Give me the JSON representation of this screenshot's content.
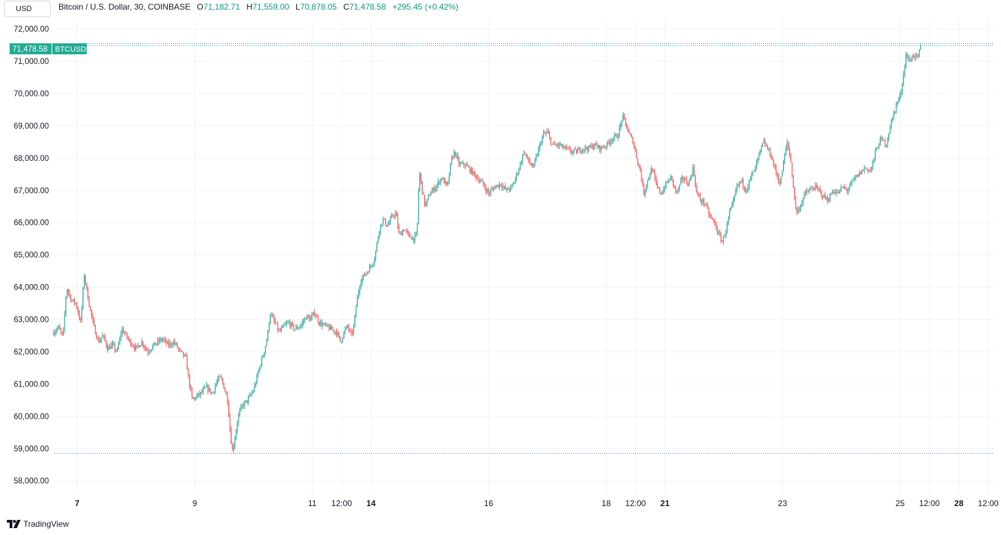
{
  "header": {
    "currency": "USD",
    "symbol_desc": "Bitcoin / U.S. Dollar, 30, COINBASE",
    "o_label": "O",
    "o_value": "71,182.71",
    "h_label": "H",
    "h_value": "71,559.00",
    "l_label": "L",
    "l_value": "70,878.05",
    "c_label": "C",
    "c_value": "71,478.58",
    "change": "+295.45 (+0.42%)"
  },
  "price_tag": {
    "value": "71,478.58",
    "symbol": "BTCUSD"
  },
  "branding": {
    "logo_text": "TradingView",
    "logo_icon": "tradingview-logo-icon"
  },
  "colors": {
    "up": "#26a69a",
    "down": "#ef5350",
    "grid": "#f0f3fa",
    "dotted": "#4f6ea0",
    "tag": "#22ab94",
    "accent_text": "#089981"
  },
  "chart_data": {
    "type": "candlestick",
    "symbol": "BTCUSD",
    "interval": "30",
    "exchange": "COINBASE",
    "ylim": [
      57600,
      72300
    ],
    "y_ticks": [
      58000,
      59000,
      60000,
      61000,
      62000,
      63000,
      64000,
      65000,
      66000,
      67000,
      68000,
      69000,
      70000,
      71000,
      72000
    ],
    "y_tick_labels": [
      "58,000.00",
      "59,000.00",
      "60,000.00",
      "61,000.00",
      "62,000.00",
      "63,000.00",
      "64,000.00",
      "65,000.00",
      "66,000.00",
      "67,000.00",
      "68,000.00",
      "69,000.00",
      "70,000.00",
      "71,000.00",
      "72,000.00"
    ],
    "x_ticks": [
      {
        "label": "7",
        "t": 0.4,
        "bold": true
      },
      {
        "label": "9",
        "t": 2.4,
        "bold": false
      },
      {
        "label": "11",
        "t": 4.4,
        "bold": false
      },
      {
        "label": "12:00",
        "t": 4.9,
        "bold": false
      },
      {
        "label": "14",
        "t": 5.4,
        "bold": true
      },
      {
        "label": "16",
        "t": 7.4,
        "bold": false
      },
      {
        "label": "18",
        "t": 9.4,
        "bold": false
      },
      {
        "label": "12:00",
        "t": 9.9,
        "bold": false
      },
      {
        "label": "21",
        "t": 10.4,
        "bold": true
      },
      {
        "label": "23",
        "t": 12.4,
        "bold": false
      },
      {
        "label": "25",
        "t": 14.4,
        "bold": false
      },
      {
        "label": "12:00",
        "t": 14.9,
        "bold": false
      },
      {
        "label": "28",
        "t": 15.4,
        "bold": true
      },
      {
        "label": "12:00",
        "t": 15.9,
        "bold": false
      }
    ],
    "t_range": [
      0,
      16
    ],
    "last_price": 71478.58,
    "range_low": 58850,
    "path": [
      [
        0.0,
        62600
      ],
      [
        0.08,
        62750
      ],
      [
        0.16,
        62450
      ],
      [
        0.22,
        64000
      ],
      [
        0.3,
        63600
      ],
      [
        0.38,
        63500
      ],
      [
        0.46,
        62900
      ],
      [
        0.52,
        64400
      ],
      [
        0.6,
        63500
      ],
      [
        0.68,
        62800
      ],
      [
        0.76,
        62300
      ],
      [
        0.84,
        62500
      ],
      [
        0.92,
        62100
      ],
      [
        1.0,
        62200
      ],
      [
        1.08,
        62000
      ],
      [
        1.16,
        62700
      ],
      [
        1.2,
        62600
      ],
      [
        1.3,
        62300
      ],
      [
        1.4,
        62100
      ],
      [
        1.5,
        62300
      ],
      [
        1.6,
        62000
      ],
      [
        1.7,
        62200
      ],
      [
        1.85,
        62400
      ],
      [
        1.95,
        62200
      ],
      [
        2.05,
        62300
      ],
      [
        2.15,
        62000
      ],
      [
        2.25,
        61800
      ],
      [
        2.3,
        61100
      ],
      [
        2.36,
        60500
      ],
      [
        2.42,
        60600
      ],
      [
        2.5,
        60700
      ],
      [
        2.6,
        60900
      ],
      [
        2.7,
        60700
      ],
      [
        2.78,
        61100
      ],
      [
        2.84,
        61200
      ],
      [
        2.9,
        60900
      ],
      [
        2.96,
        60500
      ],
      [
        3.0,
        59600
      ],
      [
        3.04,
        58900
      ],
      [
        3.08,
        59300
      ],
      [
        3.14,
        60000
      ],
      [
        3.2,
        60300
      ],
      [
        3.3,
        60500
      ],
      [
        3.4,
        60800
      ],
      [
        3.5,
        61500
      ],
      [
        3.58,
        62000
      ],
      [
        3.64,
        62500
      ],
      [
        3.68,
        63200
      ],
      [
        3.76,
        62900
      ],
      [
        3.84,
        62600
      ],
      [
        3.92,
        62800
      ],
      [
        4.0,
        62900
      ],
      [
        4.1,
        62700
      ],
      [
        4.2,
        62800
      ],
      [
        4.3,
        63100
      ],
      [
        4.36,
        63000
      ],
      [
        4.44,
        63200
      ],
      [
        4.52,
        62900
      ],
      [
        4.62,
        62800
      ],
      [
        4.72,
        62700
      ],
      [
        4.82,
        62600
      ],
      [
        4.88,
        62300
      ],
      [
        4.94,
        62600
      ],
      [
        5.0,
        62800
      ],
      [
        5.06,
        62500
      ],
      [
        5.1,
        62700
      ],
      [
        5.16,
        63600
      ],
      [
        5.22,
        64200
      ],
      [
        5.3,
        64400
      ],
      [
        5.38,
        64600
      ],
      [
        5.46,
        64900
      ],
      [
        5.54,
        65800
      ],
      [
        5.6,
        66100
      ],
      [
        5.68,
        65900
      ],
      [
        5.76,
        66200
      ],
      [
        5.82,
        66300
      ],
      [
        5.88,
        65600
      ],
      [
        5.96,
        65800
      ],
      [
        6.04,
        65600
      ],
      [
        6.12,
        65500
      ],
      [
        6.18,
        65600
      ],
      [
        6.22,
        67600
      ],
      [
        6.28,
        66900
      ],
      [
        6.32,
        66500
      ],
      [
        6.4,
        66900
      ],
      [
        6.5,
        67100
      ],
      [
        6.6,
        67400
      ],
      [
        6.7,
        67100
      ],
      [
        6.76,
        67900
      ],
      [
        6.82,
        68200
      ],
      [
        6.9,
        67800
      ],
      [
        7.0,
        67800
      ],
      [
        7.1,
        67600
      ],
      [
        7.2,
        67400
      ],
      [
        7.3,
        67200
      ],
      [
        7.4,
        66900
      ],
      [
        7.5,
        67100
      ],
      [
        7.6,
        67200
      ],
      [
        7.7,
        67000
      ],
      [
        7.8,
        67100
      ],
      [
        7.86,
        67400
      ],
      [
        7.92,
        67700
      ],
      [
        8.0,
        68200
      ],
      [
        8.08,
        67900
      ],
      [
        8.16,
        67700
      ],
      [
        8.24,
        68200
      ],
      [
        8.32,
        68700
      ],
      [
        8.4,
        68800
      ],
      [
        8.48,
        68400
      ],
      [
        8.6,
        68400
      ],
      [
        8.7,
        68300
      ],
      [
        8.8,
        68200
      ],
      [
        8.9,
        68200
      ],
      [
        9.0,
        68300
      ],
      [
        9.1,
        68300
      ],
      [
        9.2,
        68400
      ],
      [
        9.3,
        68300
      ],
      [
        9.4,
        68400
      ],
      [
        9.5,
        68600
      ],
      [
        9.6,
        68700
      ],
      [
        9.68,
        69300
      ],
      [
        9.74,
        69000
      ],
      [
        9.8,
        68700
      ],
      [
        9.86,
        68500
      ],
      [
        9.92,
        68000
      ],
      [
        9.98,
        67600
      ],
      [
        10.04,
        66900
      ],
      [
        10.1,
        67300
      ],
      [
        10.18,
        67700
      ],
      [
        10.26,
        67100
      ],
      [
        10.34,
        66900
      ],
      [
        10.42,
        67200
      ],
      [
        10.5,
        67400
      ],
      [
        10.6,
        66900
      ],
      [
        10.7,
        67400
      ],
      [
        10.8,
        67200
      ],
      [
        10.88,
        67700
      ],
      [
        10.94,
        66900
      ],
      [
        11.0,
        66700
      ],
      [
        11.08,
        66600
      ],
      [
        11.16,
        66200
      ],
      [
        11.24,
        66000
      ],
      [
        11.32,
        65600
      ],
      [
        11.38,
        65400
      ],
      [
        11.44,
        65800
      ],
      [
        11.5,
        66300
      ],
      [
        11.56,
        66600
      ],
      [
        11.62,
        67100
      ],
      [
        11.7,
        67300
      ],
      [
        11.78,
        67000
      ],
      [
        11.86,
        67400
      ],
      [
        11.94,
        67700
      ],
      [
        12.0,
        68100
      ],
      [
        12.08,
        68500
      ],
      [
        12.14,
        68300
      ],
      [
        12.2,
        68100
      ],
      [
        12.28,
        67600
      ],
      [
        12.36,
        67200
      ],
      [
        12.42,
        67900
      ],
      [
        12.48,
        68500
      ],
      [
        12.54,
        67900
      ],
      [
        12.6,
        66800
      ],
      [
        12.64,
        66300
      ],
      [
        12.7,
        66500
      ],
      [
        12.78,
        66900
      ],
      [
        12.86,
        67000
      ],
      [
        12.94,
        67100
      ],
      [
        13.02,
        67000
      ],
      [
        13.1,
        66800
      ],
      [
        13.18,
        66700
      ],
      [
        13.26,
        67000
      ],
      [
        13.34,
        66900
      ],
      [
        13.42,
        67100
      ],
      [
        13.5,
        67000
      ],
      [
        13.6,
        67300
      ],
      [
        13.7,
        67500
      ],
      [
        13.8,
        67700
      ],
      [
        13.9,
        67600
      ],
      [
        14.0,
        68300
      ],
      [
        14.08,
        68600
      ],
      [
        14.16,
        68400
      ],
      [
        14.22,
        68900
      ],
      [
        14.28,
        69300
      ],
      [
        14.34,
        69700
      ],
      [
        14.4,
        69900
      ],
      [
        14.46,
        70600
      ],
      [
        14.5,
        71200
      ],
      [
        14.56,
        71000
      ],
      [
        14.62,
        71200
      ],
      [
        14.7,
        71100
      ],
      [
        14.76,
        71479
      ]
    ]
  }
}
